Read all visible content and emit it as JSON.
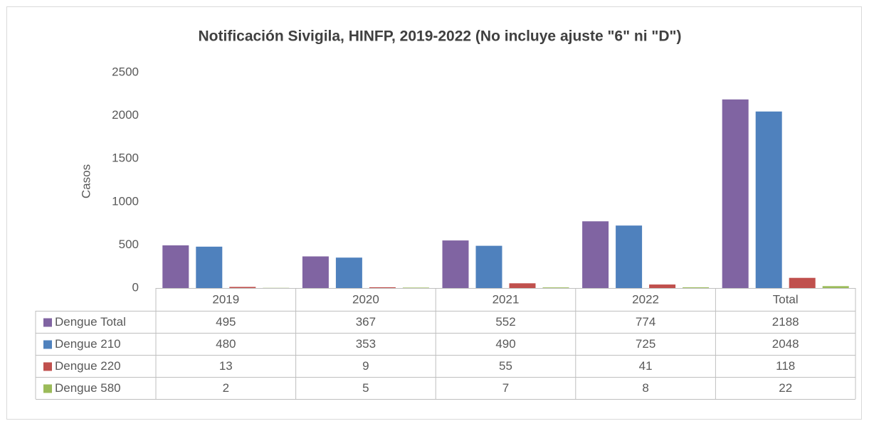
{
  "chart_data": {
    "type": "bar",
    "title": "Notificación Sivigila, HINFP, 2019-2022 (No incluye ajuste \"6\" ni \"D\")",
    "y_label": "Casos",
    "categories": [
      "2019",
      "2020",
      "2021",
      "2022",
      "Total"
    ],
    "series": [
      {
        "name": "Dengue Total",
        "color": "#8064a2",
        "values": [
          495,
          367,
          552,
          774,
          2188
        ]
      },
      {
        "name": "Dengue 210",
        "color": "#4f81bd",
        "values": [
          480,
          353,
          490,
          725,
          2048
        ]
      },
      {
        "name": "Dengue 220",
        "color": "#c0504d",
        "values": [
          13,
          9,
          55,
          41,
          118
        ]
      },
      {
        "name": "Dengue 580",
        "color": "#9bbb59",
        "values": [
          2,
          5,
          7,
          8,
          22
        ]
      }
    ],
    "ylim": [
      0,
      2500
    ],
    "yticks": [
      0,
      500,
      1000,
      1500,
      2000,
      2500
    ],
    "grid": false
  }
}
